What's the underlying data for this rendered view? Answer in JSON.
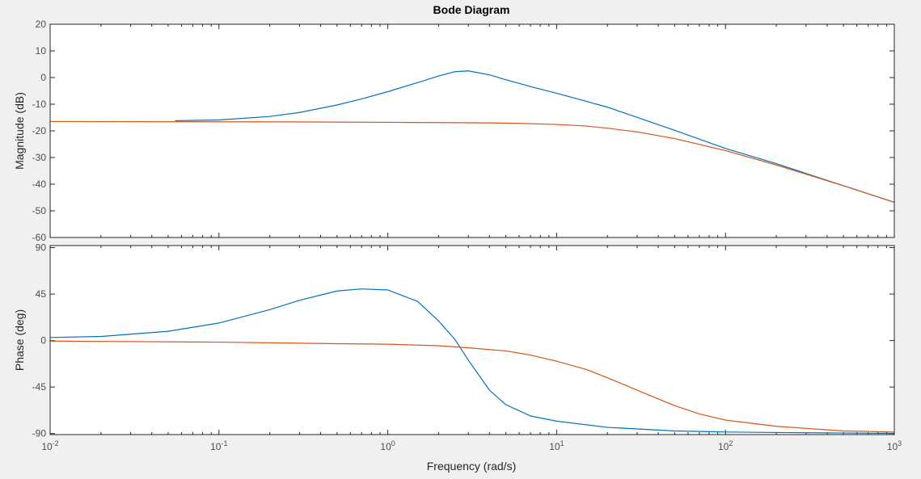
{
  "chart_data": [
    {
      "type": "line",
      "title": "Bode Diagram",
      "xlabel": "",
      "ylabel": "Magnitude (dB)",
      "xscale": "log",
      "xlim": [
        0.01,
        1000
      ],
      "ylim": [
        -60,
        20
      ],
      "yticks": [
        "20",
        "10",
        "0",
        "-10",
        "-20",
        "-30",
        "-40",
        "-50",
        "-60"
      ],
      "grid": false,
      "series": [
        {
          "color": "#0072BD",
          "x": [
            0.055,
            0.1,
            0.2,
            0.3,
            0.5,
            0.7,
            1.0,
            1.5,
            2.0,
            2.5,
            3.0,
            4.0,
            5.0,
            7.0,
            10,
            20,
            50,
            100,
            200,
            500,
            1000
          ],
          "y": [
            -16.2,
            -15.9,
            -14.6,
            -13.1,
            -10.3,
            -8.0,
            -5.3,
            -1.9,
            0.6,
            2.2,
            2.5,
            1.0,
            -0.8,
            -3.4,
            -5.9,
            -11.1,
            -19.8,
            -26.6,
            -32.3,
            -40.6,
            -46.8
          ]
        },
        {
          "color": "#D95319",
          "x": [
            0.01,
            0.1,
            0.5,
            1.0,
            2.0,
            4.0,
            6.0,
            10,
            15,
            20,
            30,
            50,
            100,
            200,
            500,
            1000
          ],
          "y": [
            -16.5,
            -16.6,
            -16.7,
            -16.8,
            -16.9,
            -17.0,
            -17.2,
            -17.6,
            -18.2,
            -19.0,
            -20.4,
            -22.9,
            -27.4,
            -32.8,
            -40.6,
            -46.8
          ]
        }
      ]
    },
    {
      "type": "line",
      "title": "",
      "xlabel": "Frequency  (rad/s)",
      "ylabel": "Phase (deg)",
      "xscale": "log",
      "xlim": [
        0.01,
        1000
      ],
      "ylim": [
        -91,
        92
      ],
      "yticks": [
        "90",
        "45",
        "0",
        "-45",
        "-90"
      ],
      "xticks": [
        {
          "base": "10",
          "exp": "-2"
        },
        {
          "base": "10",
          "exp": "-1"
        },
        {
          "base": "10",
          "exp": "0"
        },
        {
          "base": "10",
          "exp": "1"
        },
        {
          "base": "10",
          "exp": "2"
        },
        {
          "base": "10",
          "exp": "3"
        }
      ],
      "grid": false,
      "series": [
        {
          "color": "#0072BD",
          "x": [
            0.01,
            0.02,
            0.05,
            0.1,
            0.2,
            0.3,
            0.5,
            0.7,
            1.0,
            1.5,
            2.0,
            2.5,
            3.0,
            4.0,
            5.0,
            7.0,
            10,
            20,
            50,
            100,
            200,
            500,
            1000
          ],
          "y": [
            3,
            4,
            9,
            17,
            30,
            39,
            48,
            50,
            49,
            38,
            19,
            1,
            -19,
            -48,
            -62,
            -73,
            -78,
            -84,
            -87.5,
            -88.5,
            -89,
            -89.5,
            -89.8
          ]
        },
        {
          "color": "#D95319",
          "x": [
            0.01,
            0.1,
            0.5,
            1.0,
            2.0,
            3.0,
            5.0,
            7.0,
            10,
            15,
            20,
            30,
            50,
            70,
            100,
            200,
            500,
            1000
          ],
          "y": [
            -0.5,
            -1.5,
            -3,
            -3.5,
            -5,
            -7,
            -10,
            -14,
            -20,
            -28,
            -36,
            -48,
            -63,
            -71,
            -77,
            -83,
            -87.5,
            -88.5
          ]
        }
      ]
    }
  ]
}
